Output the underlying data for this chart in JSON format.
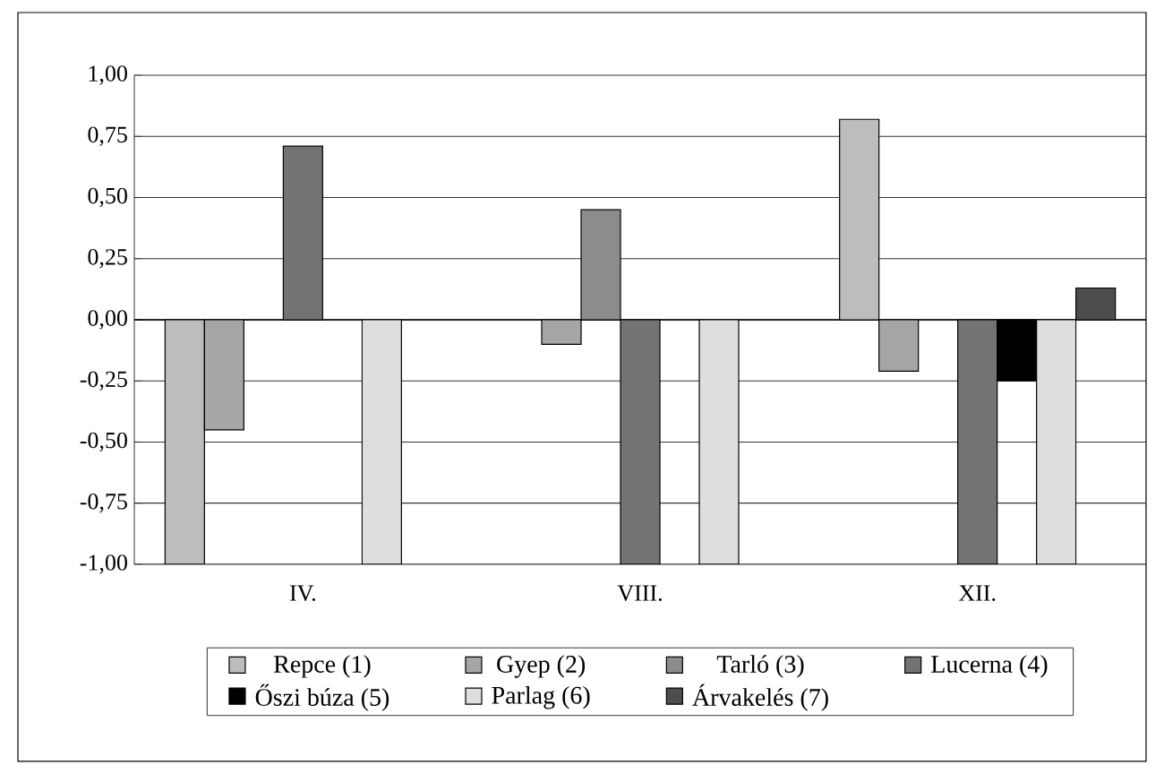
{
  "chart_data": {
    "type": "bar",
    "categories": [
      "IV.",
      "VIII.",
      "XII."
    ],
    "series": [
      {
        "name": "Repce (1)",
        "color": "#bdbdbd",
        "values": [
          -1.0,
          null,
          0.82
        ]
      },
      {
        "name": "Gyep (2)",
        "color": "#a6a6a6",
        "values": [
          -0.45,
          -0.1,
          -0.21
        ]
      },
      {
        "name": "Tarló (3)",
        "color": "#8c8c8c",
        "values": [
          null,
          0.45,
          null
        ]
      },
      {
        "name": "Lucerna (4)",
        "color": "#737373",
        "values": [
          0.71,
          -1.0,
          -1.0
        ]
      },
      {
        "name": "Őszi búza (5)",
        "color": "#000000",
        "values": [
          null,
          null,
          -0.25
        ]
      },
      {
        "name": "Parlag (6)",
        "color": "#dedede",
        "values": [
          -1.0,
          -1.0,
          -1.0
        ]
      },
      {
        "name": "Árvakelés (7)",
        "color": "#4d4d4d",
        "values": [
          null,
          null,
          0.13
        ]
      }
    ],
    "ylim": [
      -1.0,
      1.0
    ],
    "yticks": [
      {
        "value": -1.0,
        "label": "-1,00"
      },
      {
        "value": -0.75,
        "label": "-0,75"
      },
      {
        "value": -0.5,
        "label": "-0,50"
      },
      {
        "value": -0.25,
        "label": "-0,25"
      },
      {
        "value": 0.0,
        "label": "0,00"
      },
      {
        "value": 0.25,
        "label": "0,25"
      },
      {
        "value": 0.5,
        "label": "0,50"
      },
      {
        "value": 0.75,
        "label": "0,75"
      },
      {
        "value": 1.0,
        "label": "1,00"
      }
    ],
    "grid": "y",
    "legend": "bottom"
  }
}
